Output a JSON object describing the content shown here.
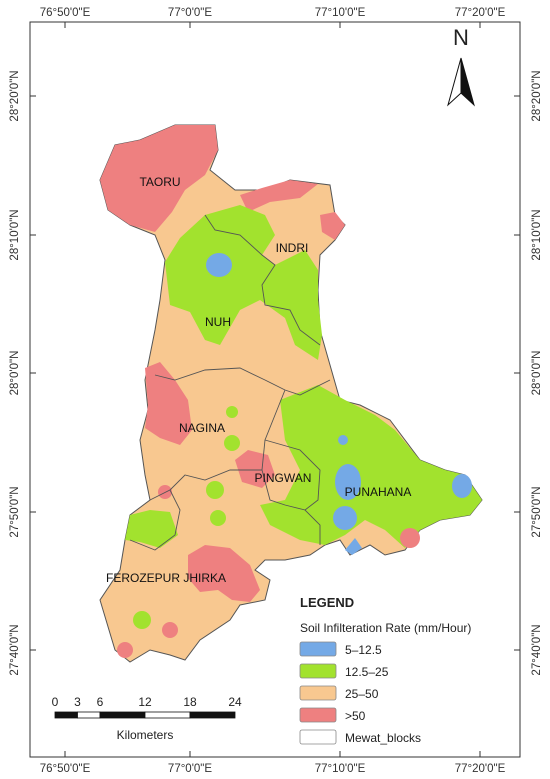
{
  "axes": {
    "top": [
      "76°50'0\"E",
      "77°0'0\"E",
      "77°10'0\"E",
      "77°20'0\"E"
    ],
    "bottom": [
      "76°50'0\"E",
      "77°0'0\"E",
      "77°10'0\"E",
      "77°20'0\"E"
    ],
    "left": [
      "28°20'0\"N",
      "28°10'0\"N",
      "28°0'0\"N",
      "27°50'0\"N",
      "27°40'0\"N"
    ],
    "right": [
      "28°20'0\"N",
      "28°10'0\"N",
      "28°0'0\"N",
      "27°50'0\"N",
      "27°40'0\"N"
    ]
  },
  "north_arrow": "N",
  "blocks": [
    {
      "label": "TAORU"
    },
    {
      "label": "INDRI"
    },
    {
      "label": "NUH"
    },
    {
      "label": "NAGINA"
    },
    {
      "label": "PINGWAN"
    },
    {
      "label": "PUNAHANA"
    },
    {
      "label": "FEROZEPUR JHIRKA"
    }
  ],
  "legend": {
    "title": "LEGEND",
    "subtitle": "Soil Infilteration Rate (mm/Hour)",
    "items": [
      {
        "label": "5–12.5",
        "color": "#74a9e6"
      },
      {
        "label": "12.5–25",
        "color": "#a2e22e"
      },
      {
        "label": "25–50",
        "color": "#f8c890"
      },
      {
        "label": ">50",
        "color": "#ee8080"
      },
      {
        "label": "Mewat_blocks",
        "color": "#ffffff"
      }
    ]
  },
  "scale_bar": {
    "ticks": [
      0,
      3,
      6,
      12,
      18,
      24
    ],
    "unit": "Kilometers"
  }
}
